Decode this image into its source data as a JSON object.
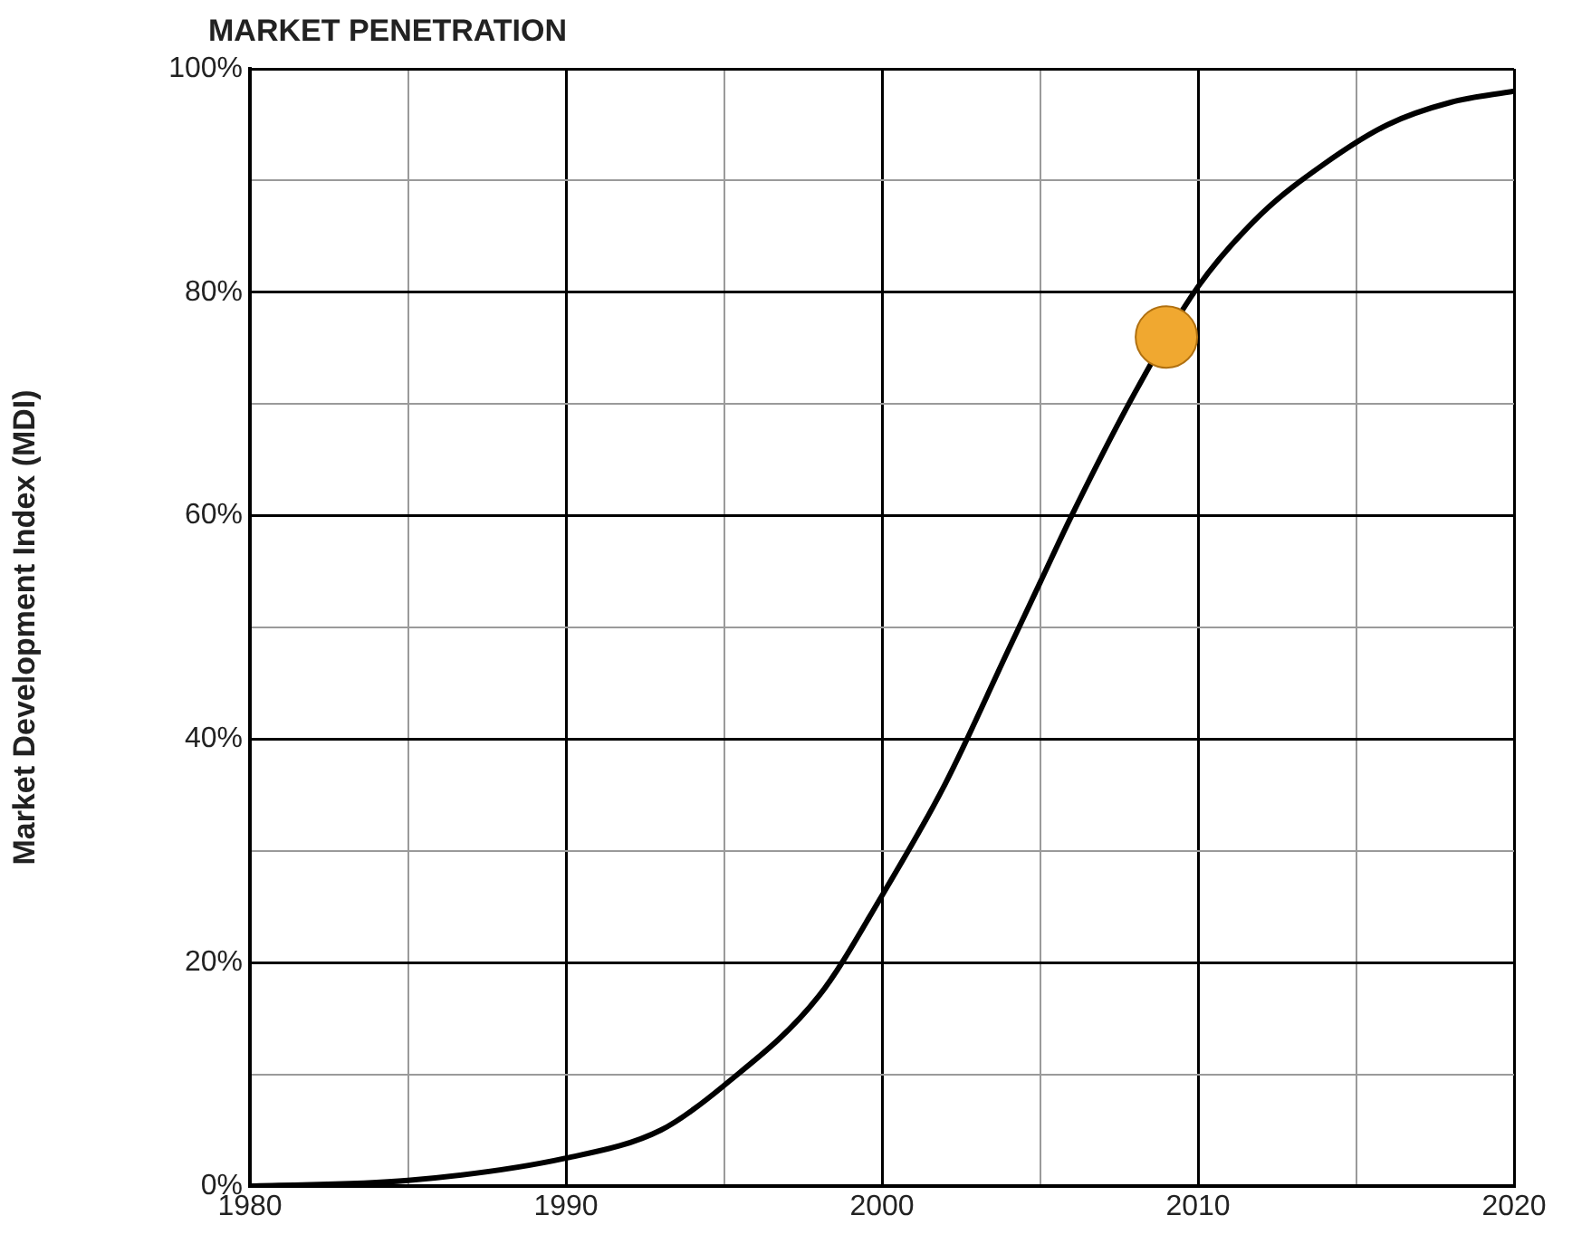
{
  "chart_data": {
    "type": "line",
    "title": "MARKET PENETRATION",
    "ylabel": "Market Development Index (MDI)",
    "xlim": [
      1980,
      2020
    ],
    "xticks": [
      1980,
      {
        "value": 1985,
        "label": null
      },
      1990,
      {
        "value": 1995,
        "label": null
      },
      2000,
      {
        "value": 2005,
        "label": null
      },
      2010,
      {
        "value": 2015,
        "label": null
      },
      2020
    ],
    "ylim": [
      0,
      100
    ],
    "yticks": [
      {
        "value": 0,
        "label": "0%"
      },
      {
        "value": 10,
        "label": null
      },
      {
        "value": 20,
        "label": "20%"
      },
      {
        "value": 30,
        "label": null
      },
      {
        "value": 40,
        "label": "40%"
      },
      {
        "value": 50,
        "label": null
      },
      {
        "value": 60,
        "label": "60%"
      },
      {
        "value": 70,
        "label": null
      },
      {
        "value": 80,
        "label": "80%"
      },
      {
        "value": 90,
        "label": null
      },
      {
        "value": 100,
        "label": "100%"
      }
    ],
    "grid": true,
    "legend": false,
    "series": [
      {
        "color": "#000000",
        "marker": "none",
        "x": [
          1980,
          1985,
          1990,
          1993,
          1995,
          1998,
          2000,
          2002,
          2004,
          2005,
          2006,
          2008,
          2010,
          2012,
          2014,
          2016,
          2018,
          2020
        ],
        "values": [
          0,
          0.5,
          2.5,
          5,
          9,
          17,
          26,
          36,
          48,
          54,
          60,
          71,
          80.5,
          87,
          91.5,
          95,
          97,
          98
        ]
      },
      {
        "type": "scatter",
        "color": "#f0a830",
        "marker": "circle",
        "x": [
          2009
        ],
        "values": [
          76
        ]
      }
    ]
  }
}
